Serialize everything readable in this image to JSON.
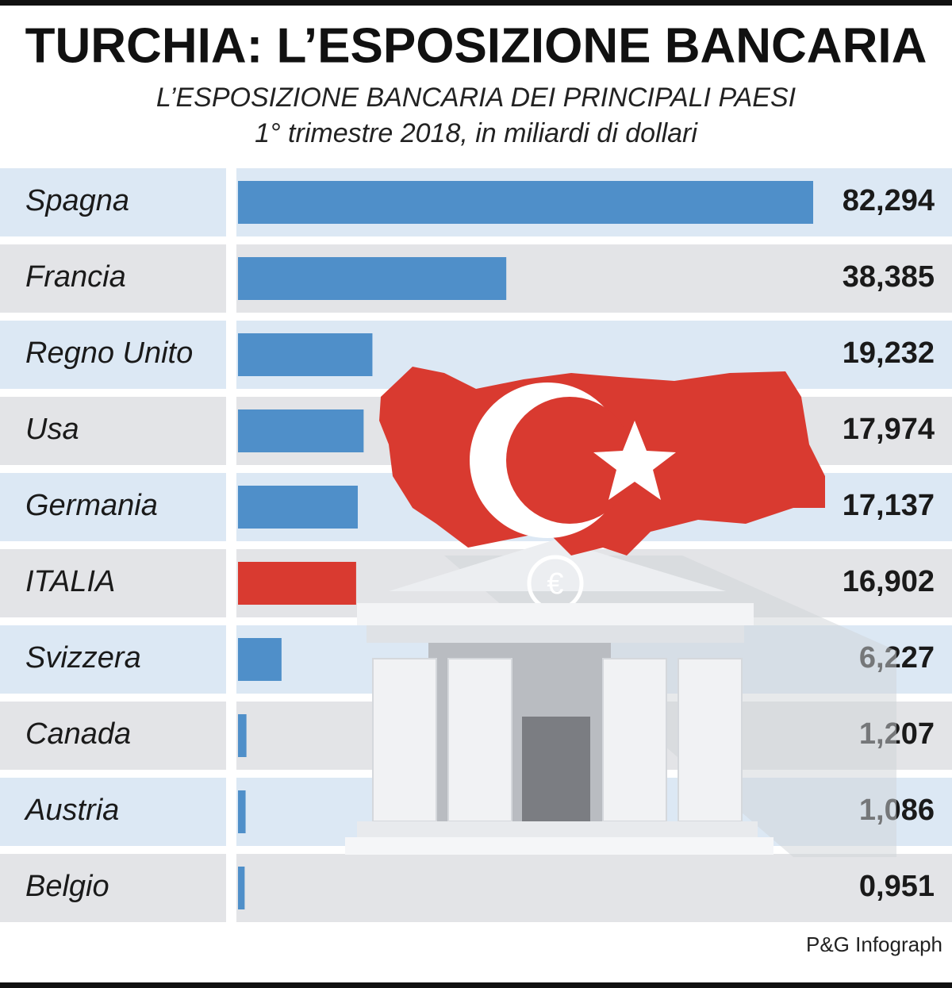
{
  "chart_data": {
    "type": "bar",
    "orientation": "horizontal",
    "title": "TURCHIA: L’ESPOSIZIONE BANCARIA",
    "subtitle": [
      "L’ESPOSIZIONE BANCARIA DEI PRINCIPALI PAESI",
      "1° trimestre 2018, in miliardi di dollari"
    ],
    "categories": [
      "Spagna",
      "Francia",
      "Regno Unito",
      "Usa",
      "Germania",
      "ITALIA",
      "Svizzera",
      "Canada",
      "Austria",
      "Belgio"
    ],
    "values": [
      82.294,
      38.385,
      19.232,
      17.974,
      17.137,
      16.902,
      6.227,
      1.207,
      1.086,
      0.951
    ],
    "value_labels": [
      "82,294",
      "38,385",
      "19,232",
      "17,974",
      "17,137",
      "16,902",
      "6,227",
      "1,207",
      "1,086",
      "0,951"
    ],
    "colors": [
      "#4f8fc9",
      "#4f8fc9",
      "#4f8fc9",
      "#4f8fc9",
      "#4f8fc9",
      "#d93a30",
      "#4f8fc9",
      "#4f8fc9",
      "#4f8fc9",
      "#4f8fc9"
    ],
    "source": "P&G Infograph"
  }
}
